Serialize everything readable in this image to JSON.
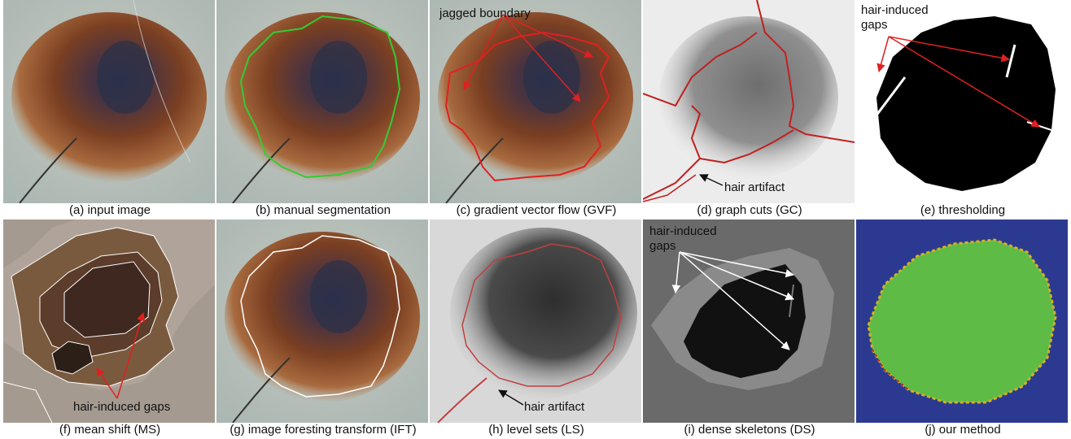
{
  "captions": {
    "a": "(a) input image",
    "b": "(b) manual segmentation",
    "c": "(c) gradient vector flow (GVF)",
    "d": "(d) graph cuts (GC)",
    "e": "(e) thresholding",
    "f": "(f) mean shift (MS)",
    "g": "(g) image foresting transform (IFT)",
    "h": "(h) level sets (LS)",
    "i": "(i) dense skeletons (DS)",
    "j": "(j) our method"
  },
  "annotations": {
    "c_jagged": "jagged boundary",
    "d_hair": "hair artifact",
    "e_gaps_1": "hair-induced",
    "e_gaps_2": "gaps",
    "f_gaps": "hair-induced gaps",
    "h_hair": "hair artifact",
    "i_gaps_1": "hair-induced",
    "i_gaps_2": "gaps"
  },
  "colors": {
    "skin": "#b7bfb8",
    "lesion_brown": "#8a4a2a",
    "lesion_dark": "#2a3048",
    "manual_contour": "#33cc33",
    "red_contour": "#e02020",
    "dark_red_contour": "#c02020",
    "white_contour": "#ffffff",
    "method_blue": "#2b3a90",
    "method_green": "#5ebb45",
    "arrow_red": "#e02020",
    "arrow_white": "#ffffff"
  }
}
